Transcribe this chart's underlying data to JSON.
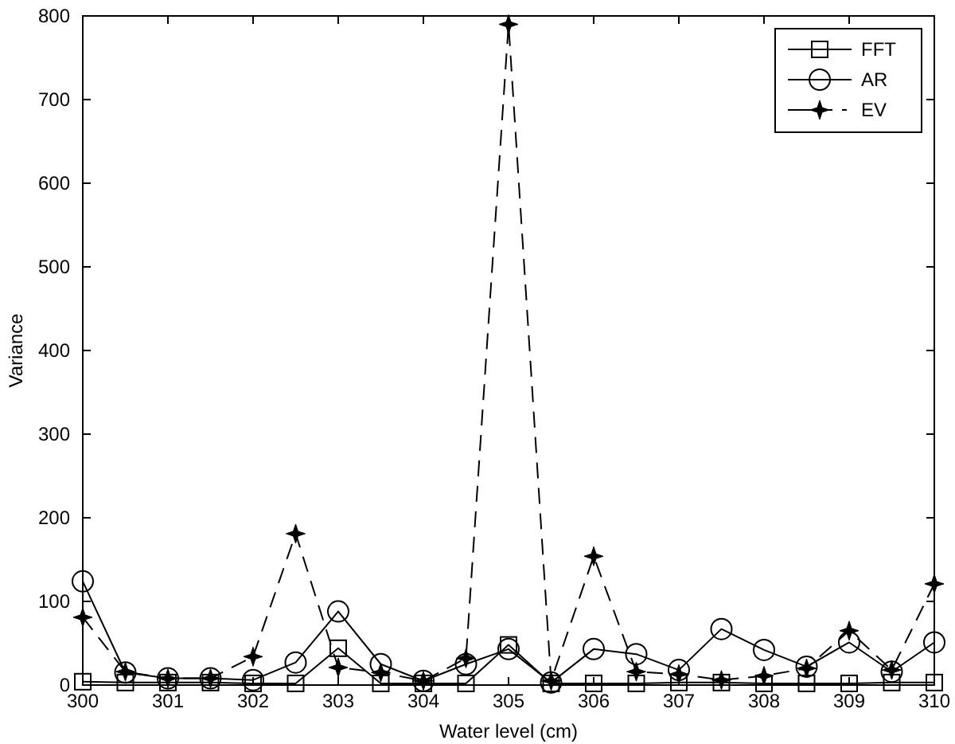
{
  "chart_data": {
    "type": "line",
    "xlabel": "Water level (cm)",
    "ylabel": "Variance",
    "x": [
      300,
      300.5,
      301,
      301.5,
      302,
      302.5,
      303,
      303.5,
      304,
      304.5,
      305,
      305.5,
      306,
      306.5,
      307,
      307.5,
      308,
      308.5,
      309,
      309.5,
      310
    ],
    "series": [
      {
        "name": "FFT",
        "color": "#000000",
        "marker": "square",
        "line_style": "solid",
        "values": [
          4,
          3,
          3,
          3,
          2,
          2,
          44,
          2,
          2,
          2,
          48,
          2,
          2,
          2,
          3,
          3,
          2,
          2,
          2,
          3,
          3
        ]
      },
      {
        "name": "AR",
        "color": "#000000",
        "marker": "circle",
        "line_style": "solid",
        "values": [
          124,
          15,
          8,
          8,
          6,
          27,
          88,
          25,
          5,
          25,
          43,
          3,
          43,
          37,
          18,
          67,
          42,
          22,
          51,
          16,
          51
        ]
      },
      {
        "name": "EV",
        "color": "#000000",
        "marker": "star",
        "line_style": "dashed",
        "values": [
          81,
          16,
          8,
          8,
          34,
          181,
          21,
          15,
          5,
          32,
          790,
          5,
          154,
          16,
          13,
          6,
          11,
          20,
          65,
          18,
          121
        ]
      }
    ],
    "xlim": [
      300,
      310
    ],
    "ylim": [
      0,
      800
    ],
    "xticks": [
      300,
      301,
      302,
      303,
      304,
      305,
      306,
      307,
      308,
      309,
      310
    ],
    "yticks": [
      0,
      100,
      200,
      300,
      400,
      500,
      600,
      700,
      800
    ],
    "grid": false,
    "legend": "top right"
  }
}
